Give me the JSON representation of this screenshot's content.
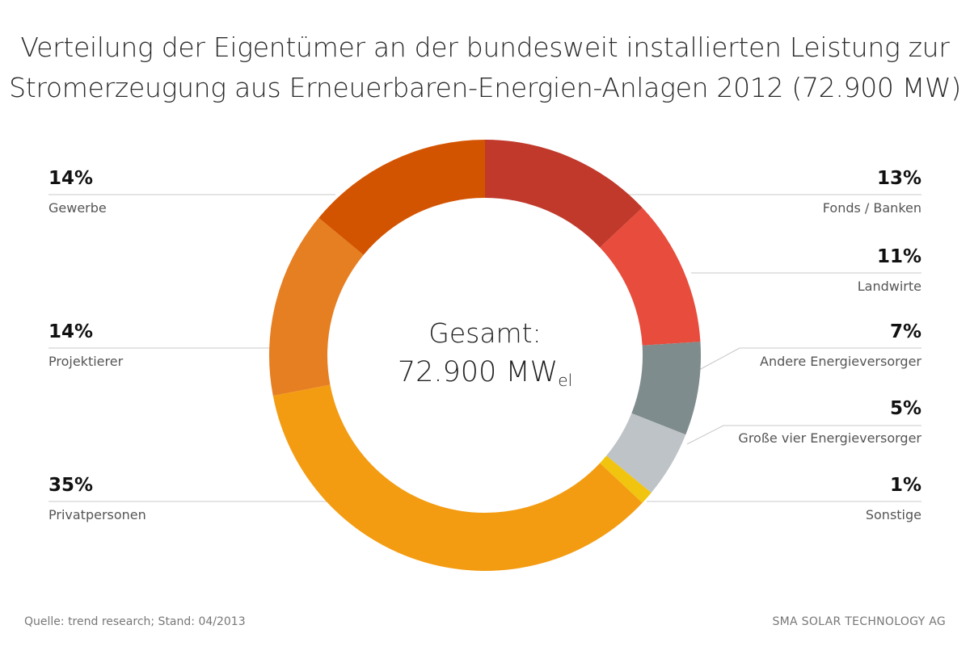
{
  "chart_data": {
    "type": "pie",
    "title_lines": [
      "Verteilung der Eigentümer an der bundesweit installierten Leistung zur",
      "Stromerzeugung aus Erneuerbaren-Energien-Anlagen 2012 (72.900 MW)"
    ],
    "center_label_line1": "Gesamt:",
    "center_label_value": "72.900 MW",
    "center_label_subscript": "el",
    "slices": [
      {
        "name": "Fonds / Banken",
        "value": 13,
        "pct_label": "13%",
        "color": "#c0392b"
      },
      {
        "name": "Landwirte",
        "value": 11,
        "pct_label": "11%",
        "color": "#e74c3c"
      },
      {
        "name": "Andere Energieversorger",
        "value": 7,
        "pct_label": "7%",
        "color": "#7f8c8d"
      },
      {
        "name": "Große vier Energieversorger",
        "value": 5,
        "pct_label": "5%",
        "color": "#bdc3c7"
      },
      {
        "name": "Sonstige",
        "value": 1,
        "pct_label": "1%",
        "color": "#f1c40f"
      },
      {
        "name": "Privatpersonen",
        "value": 35,
        "pct_label": "35%",
        "color": "#f39c12"
      },
      {
        "name": "Projektierer",
        "value": 14,
        "pct_label": "14%",
        "color": "#e67e22"
      },
      {
        "name": "Gewerbe",
        "value": 14,
        "pct_label": "14%",
        "color": "#d35400"
      }
    ]
  },
  "footer": {
    "source": "Quelle: trend research; Stand: 04/2013",
    "company": "SMA SOLAR TECHNOLOGY AG"
  }
}
